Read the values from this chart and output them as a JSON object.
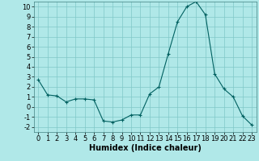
{
  "x": [
    0,
    1,
    2,
    3,
    4,
    5,
    6,
    7,
    8,
    9,
    10,
    11,
    12,
    13,
    14,
    15,
    16,
    17,
    18,
    19,
    20,
    21,
    22,
    23
  ],
  "y": [
    2.7,
    1.2,
    1.1,
    0.5,
    0.8,
    0.8,
    0.7,
    -1.4,
    -1.5,
    -1.3,
    -0.8,
    -0.8,
    1.3,
    2.0,
    5.3,
    8.5,
    10.0,
    10.5,
    9.2,
    3.3,
    1.8,
    1.0,
    -0.9,
    -1.8
  ],
  "xlabel": "Humidex (Indice chaleur)",
  "xlim": [
    -0.5,
    23.5
  ],
  "ylim": [
    -2.5,
    10.5
  ],
  "yticks": [
    -2,
    -1,
    0,
    1,
    2,
    3,
    4,
    5,
    6,
    7,
    8,
    9,
    10
  ],
  "xticks": [
    0,
    1,
    2,
    3,
    4,
    5,
    6,
    7,
    8,
    9,
    10,
    11,
    12,
    13,
    14,
    15,
    16,
    17,
    18,
    19,
    20,
    21,
    22,
    23
  ],
  "line_color": "#006060",
  "marker_color": "#006060",
  "bg_color": "#b0e8e8",
  "grid_color": "#80c8c8",
  "label_fontsize": 7,
  "tick_fontsize": 6
}
